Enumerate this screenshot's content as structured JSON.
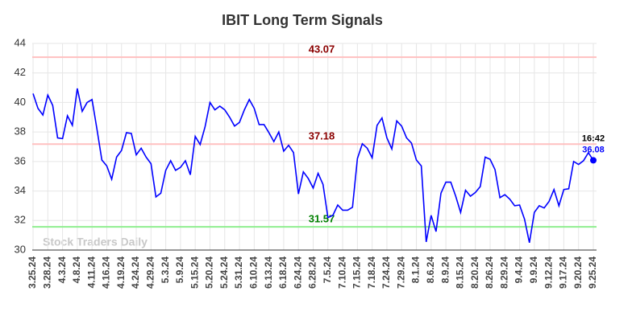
{
  "chart_data": {
    "type": "line",
    "title": "IBIT Long Term Signals",
    "watermark": "Stock Traders Daily",
    "categories": [
      "3.25.24",
      null,
      null,
      "3.28.24",
      null,
      null,
      "4.3.24",
      null,
      null,
      "4.8.24",
      null,
      null,
      "4.11.24",
      null,
      null,
      "4.16.24",
      null,
      null,
      "4.19.24",
      null,
      null,
      "4.24.24",
      null,
      null,
      "4.29.24",
      null,
      null,
      "5.3.24",
      null,
      null,
      "5.9.24",
      null,
      null,
      "5.15.24",
      null,
      null,
      "5.20.24",
      null,
      null,
      "5.24.24",
      null,
      null,
      "5.31.24",
      null,
      null,
      "6.10.24",
      null,
      null,
      "6.13.24",
      null,
      null,
      "6.18.24",
      null,
      null,
      "6.24.24",
      null,
      null,
      "6.28.24",
      null,
      null,
      "7.5.24",
      null,
      null,
      "7.10.24",
      null,
      null,
      "7.15.24",
      null,
      null,
      "7.18.24",
      null,
      null,
      "7.24.24",
      null,
      null,
      "7.29.24",
      null,
      null,
      "8.1.24",
      null,
      null,
      "8.6.24",
      null,
      null,
      "8.9.24",
      null,
      null,
      "8.15.24",
      null,
      null,
      "8.20.24",
      null,
      null,
      "8.26.24",
      null,
      null,
      "8.29.24",
      null,
      null,
      "9.4.24",
      null,
      null,
      "9.9.24",
      null,
      null,
      "9.12.24",
      null,
      null,
      "9.17.24",
      null,
      null,
      "9.20.24",
      null,
      null,
      "9.25.24"
    ],
    "values": [
      40.6,
      39.6,
      39.15,
      40.5,
      39.8,
      37.6,
      37.55,
      39.1,
      38.45,
      40.95,
      39.4,
      40.0,
      40.2,
      38.2,
      36.1,
      35.7,
      34.8,
      36.3,
      36.75,
      37.95,
      37.9,
      36.45,
      36.9,
      36.3,
      35.85,
      33.6,
      33.85,
      35.4,
      36.05,
      35.4,
      35.6,
      36.05,
      35.1,
      37.7,
      37.15,
      38.35,
      40.0,
      39.5,
      39.75,
      39.5,
      39.0,
      38.4,
      38.65,
      39.5,
      40.2,
      39.6,
      38.5,
      38.5,
      37.95,
      37.35,
      38.0,
      36.7,
      37.1,
      36.6,
      33.8,
      35.3,
      34.85,
      34.2,
      35.2,
      34.45,
      32.2,
      32.35,
      33.05,
      32.7,
      32.7,
      32.9,
      36.2,
      37.2,
      36.9,
      36.25,
      38.45,
      38.95,
      37.6,
      36.85,
      38.75,
      38.4,
      37.6,
      37.25,
      36.1,
      35.7,
      30.55,
      32.35,
      31.25,
      33.85,
      34.6,
      34.6,
      33.65,
      32.55,
      34.05,
      33.65,
      33.9,
      34.3,
      36.3,
      36.15,
      35.45,
      33.55,
      33.75,
      33.45,
      33.0,
      33.05,
      32.1,
      30.5,
      32.55,
      33.0,
      32.85,
      33.3,
      34.1,
      33.0,
      34.1,
      34.15,
      36.0,
      35.8,
      36.05,
      36.6,
      36.08
    ],
    "color": "#0000ff",
    "last_time": "16:42",
    "reference_lines": [
      {
        "value": 43.07,
        "color": "#ffc0c0",
        "label_color": "#8b0000"
      },
      {
        "value": 37.18,
        "color": "#ffc0c0",
        "label_color": "#8b0000"
      },
      {
        "value": 31.57,
        "color": "#90ee90",
        "label_color": "#008000"
      }
    ],
    "ylim": [
      30,
      44
    ],
    "yticks": [
      30,
      32,
      34,
      36,
      38,
      40,
      42,
      44
    ],
    "grid": true
  }
}
